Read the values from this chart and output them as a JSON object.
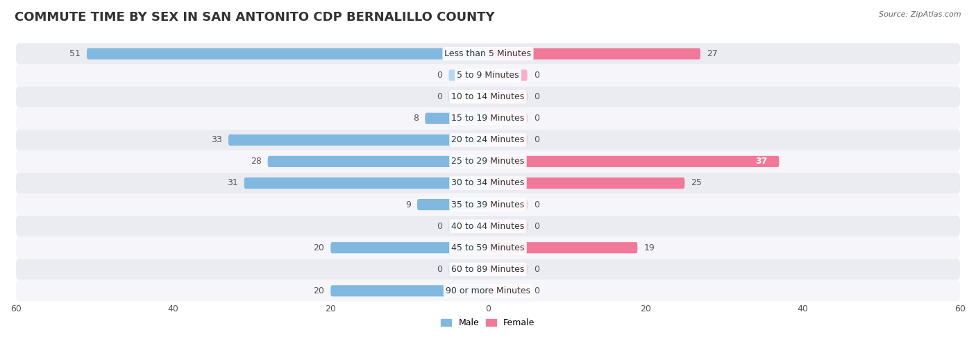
{
  "title": "COMMUTE TIME BY SEX IN SAN ANTONITO CDP BERNALILLO COUNTY",
  "source": "Source: ZipAtlas.com",
  "categories": [
    "Less than 5 Minutes",
    "5 to 9 Minutes",
    "10 to 14 Minutes",
    "15 to 19 Minutes",
    "20 to 24 Minutes",
    "25 to 29 Minutes",
    "30 to 34 Minutes",
    "35 to 39 Minutes",
    "40 to 44 Minutes",
    "45 to 59 Minutes",
    "60 to 89 Minutes",
    "90 or more Minutes"
  ],
  "male_values": [
    51,
    0,
    0,
    8,
    33,
    28,
    31,
    9,
    0,
    20,
    0,
    20
  ],
  "female_values": [
    27,
    0,
    0,
    0,
    0,
    37,
    25,
    0,
    0,
    19,
    0,
    0
  ],
  "male_color": "#80b8e0",
  "female_color": "#f07898",
  "male_light_color": "#b8d8f0",
  "female_light_color": "#f8b0c8",
  "male_label": "Male",
  "female_label": "Female",
  "xlim": 60,
  "bar_height": 0.52,
  "row_bg_even": "#ebebf2",
  "row_bg_odd": "#f5f5fa",
  "value_color_outside": "#555555",
  "title_fontsize": 13,
  "label_fontsize": 9,
  "value_fontsize": 9,
  "axis_fontsize": 9,
  "zero_bar_width": 5
}
